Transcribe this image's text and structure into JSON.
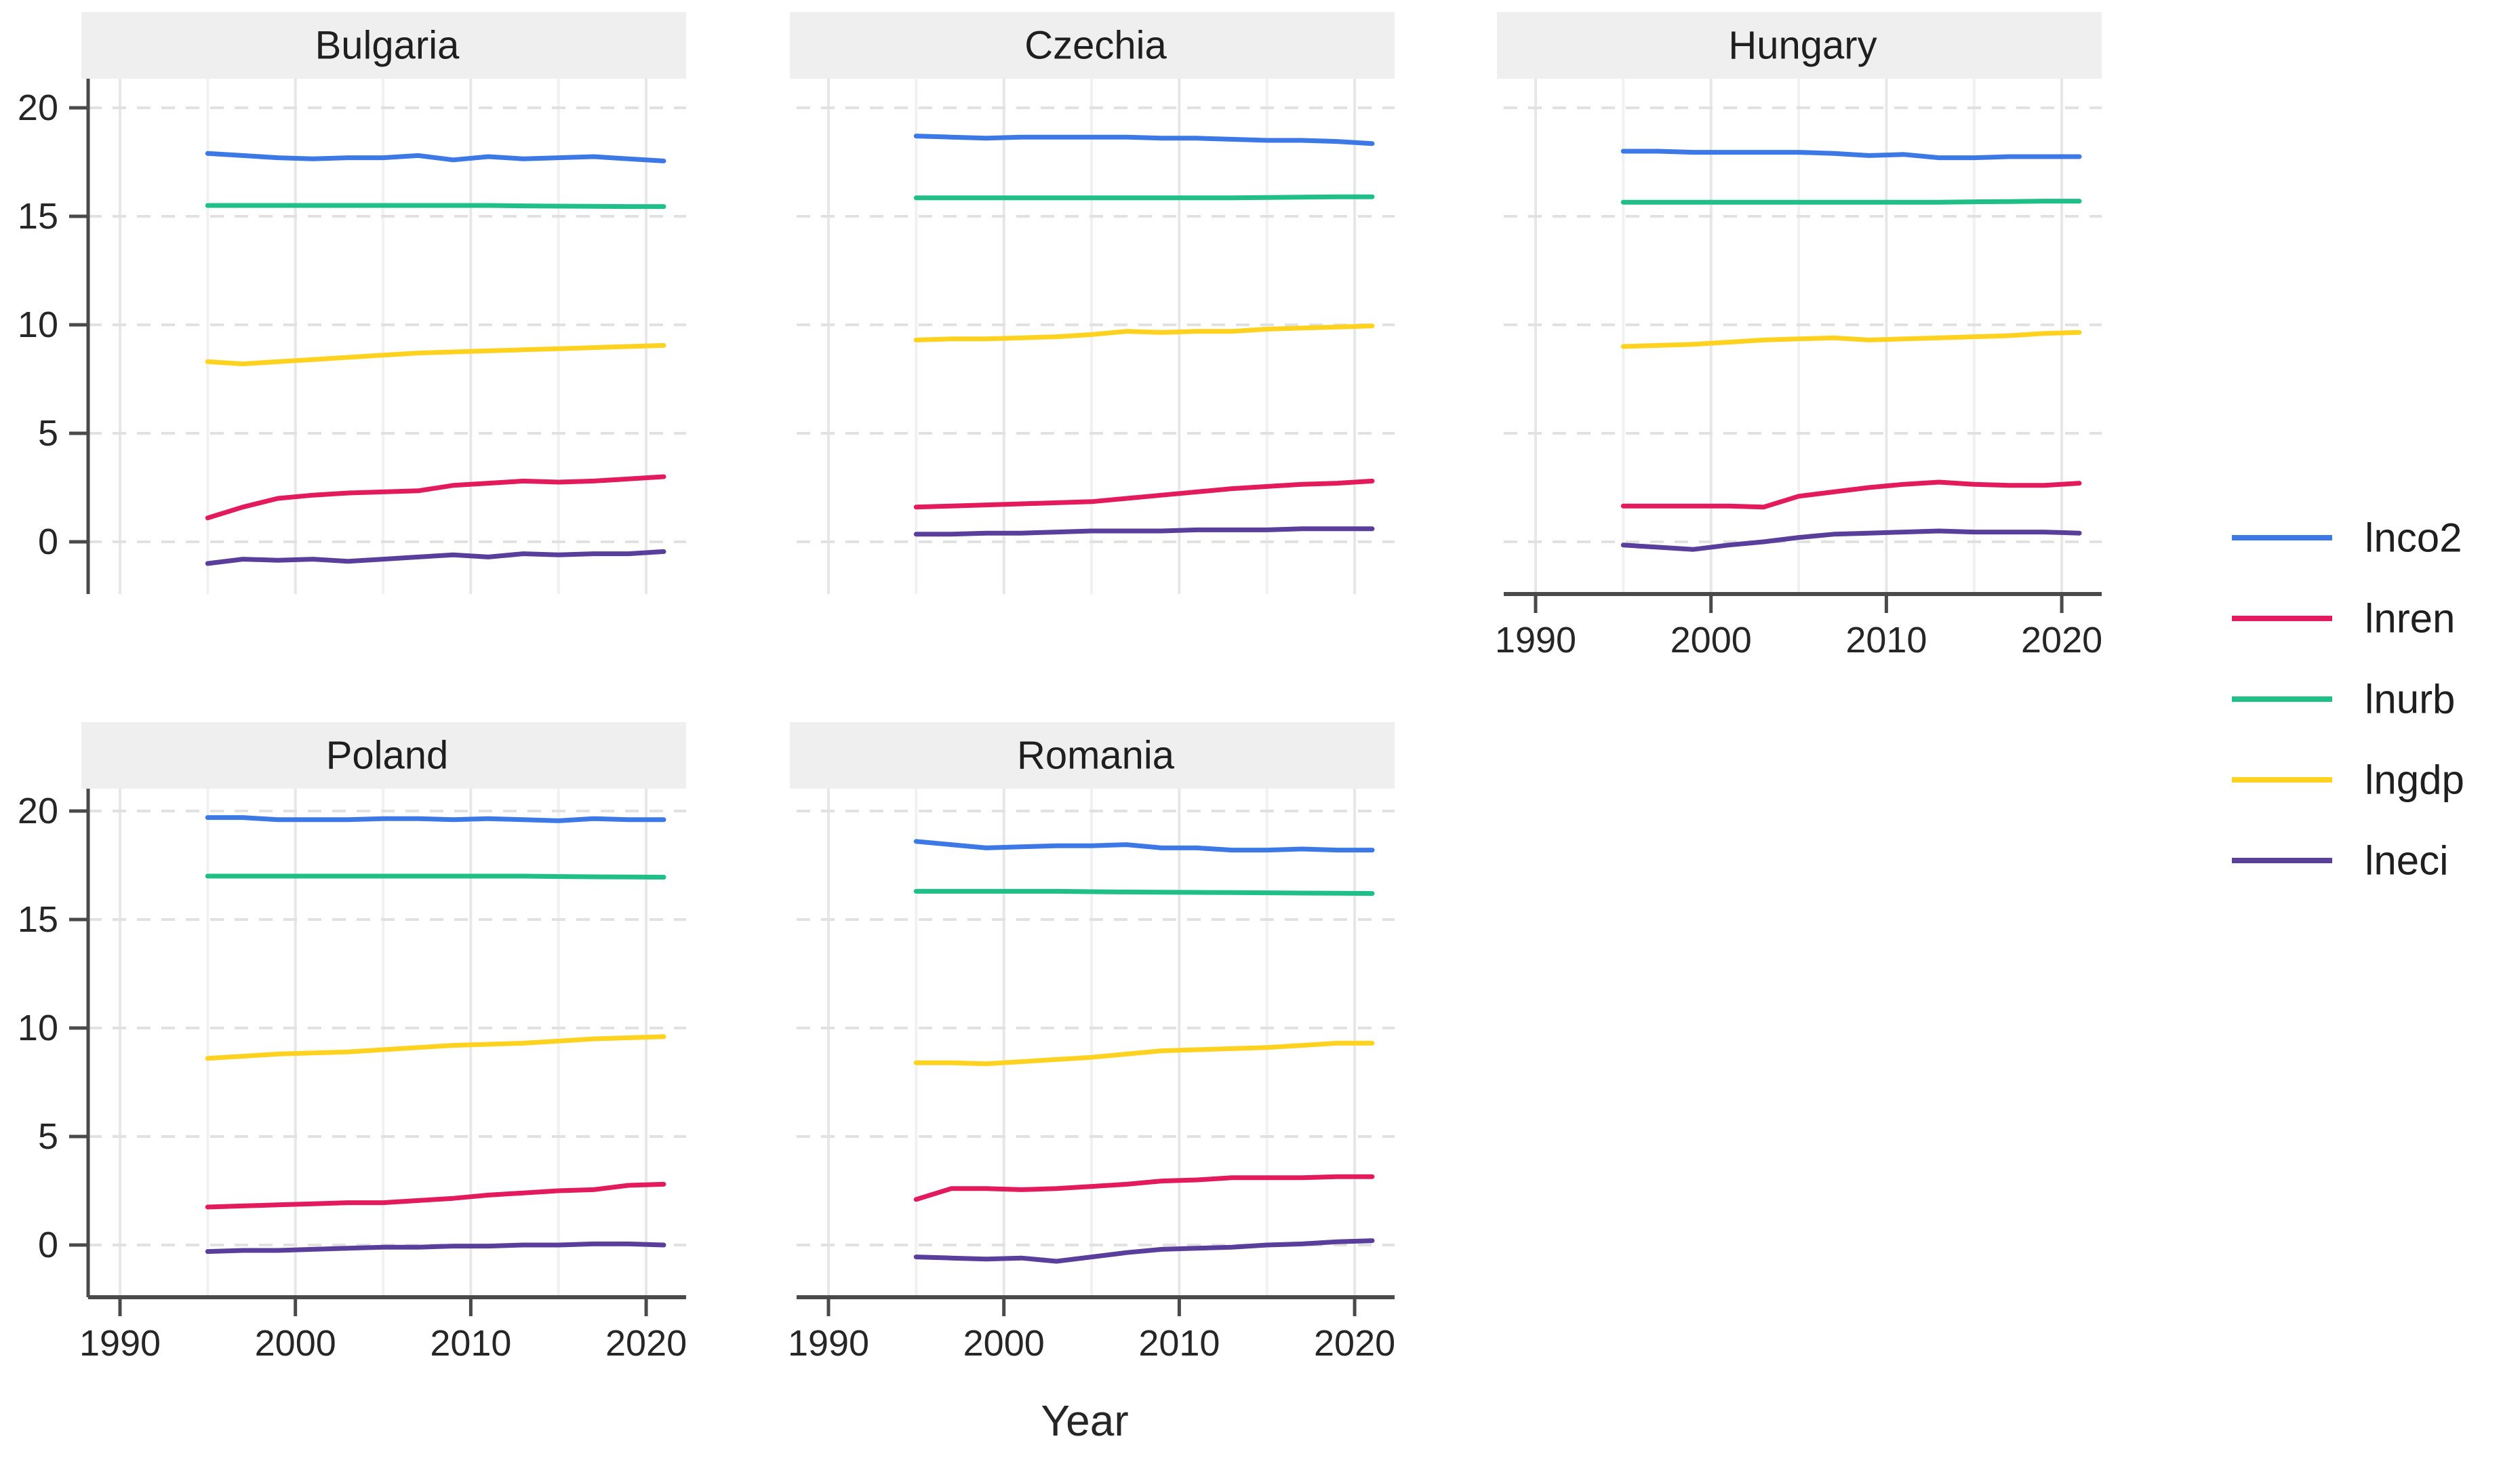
{
  "figure": {
    "x_axis_title": "Year"
  },
  "chart_data": {
    "type": "line",
    "title": "",
    "xlabel": "Year",
    "ylabel": "",
    "legend_position": "right",
    "grid": "horizontal-major-dashed, vertical-major-and-minor-solid-light",
    "x_ticks": [
      1990,
      2000,
      2010,
      2020
    ],
    "y_ticks": [
      0,
      5,
      10,
      15,
      20
    ],
    "xlim": [
      1988.2,
      2022.3
    ],
    "ylim": [
      -2.4,
      21.4
    ],
    "x": [
      1995,
      1997,
      1999,
      2001,
      2003,
      2005,
      2007,
      2009,
      2011,
      2013,
      2015,
      2017,
      2019,
      2021
    ],
    "series_meta": [
      {
        "key": "lnco2",
        "label": "lnco2",
        "color": "#3C79E6"
      },
      {
        "key": "lnren",
        "label": "lnren",
        "color": "#E31A5C"
      },
      {
        "key": "lnurb",
        "label": "lnurb",
        "color": "#1FBF87"
      },
      {
        "key": "lngdp",
        "label": "lngdp",
        "color": "#FFD21F"
      },
      {
        "key": "lneci",
        "label": "lneci",
        "color": "#5A3E9B"
      }
    ],
    "style": {
      "strip_bg": "#EFEFEF",
      "strip_text": "#1f1f1f",
      "axis_line": "#4A4A4A",
      "tick_text": "#262626",
      "grid_major_v": "#E7E7E7",
      "grid_minor_v": "#F1F1F1",
      "grid_major_h_dashed": "#E1E1E1"
    },
    "facets": [
      {
        "title": "Bulgaria",
        "series": {
          "lnco2": [
            17.9,
            17.8,
            17.7,
            17.65,
            17.7,
            17.7,
            17.8,
            17.6,
            17.75,
            17.65,
            17.7,
            17.75,
            17.65,
            17.55
          ],
          "lnren": [
            1.1,
            1.6,
            2.0,
            2.15,
            2.25,
            2.3,
            2.35,
            2.6,
            2.7,
            2.8,
            2.75,
            2.8,
            2.9,
            3.0
          ],
          "lnurb": [
            15.5,
            15.5,
            15.5,
            15.5,
            15.5,
            15.5,
            15.5,
            15.5,
            15.5,
            15.48,
            15.47,
            15.46,
            15.45,
            15.45
          ],
          "lngdp": [
            8.3,
            8.2,
            8.3,
            8.4,
            8.5,
            8.6,
            8.7,
            8.75,
            8.8,
            8.85,
            8.9,
            8.95,
            9.0,
            9.05
          ],
          "lneci": [
            -1.0,
            -0.8,
            -0.85,
            -0.8,
            -0.9,
            -0.8,
            -0.7,
            -0.6,
            -0.7,
            -0.55,
            -0.6,
            -0.55,
            -0.55,
            -0.45
          ]
        }
      },
      {
        "title": "Czechia",
        "series": {
          "lnco2": [
            18.7,
            18.65,
            18.6,
            18.65,
            18.65,
            18.65,
            18.65,
            18.6,
            18.6,
            18.55,
            18.5,
            18.5,
            18.45,
            18.35
          ],
          "lnren": [
            1.6,
            1.65,
            1.7,
            1.75,
            1.8,
            1.85,
            2.0,
            2.15,
            2.3,
            2.45,
            2.55,
            2.65,
            2.7,
            2.8
          ],
          "lnurb": [
            15.85,
            15.85,
            15.85,
            15.85,
            15.85,
            15.85,
            15.85,
            15.85,
            15.85,
            15.85,
            15.87,
            15.88,
            15.9,
            15.9
          ],
          "lngdp": [
            9.3,
            9.35,
            9.35,
            9.4,
            9.45,
            9.55,
            9.7,
            9.65,
            9.7,
            9.7,
            9.8,
            9.85,
            9.9,
            9.95
          ],
          "lneci": [
            0.35,
            0.35,
            0.4,
            0.4,
            0.45,
            0.5,
            0.5,
            0.5,
            0.55,
            0.55,
            0.55,
            0.6,
            0.6,
            0.6
          ]
        }
      },
      {
        "title": "Hungary",
        "series": {
          "lnco2": [
            18.0,
            18.0,
            17.95,
            17.95,
            17.95,
            17.95,
            17.9,
            17.8,
            17.85,
            17.7,
            17.7,
            17.75,
            17.75,
            17.75
          ],
          "lnren": [
            1.65,
            1.65,
            1.65,
            1.65,
            1.6,
            2.1,
            2.3,
            2.5,
            2.65,
            2.75,
            2.65,
            2.6,
            2.6,
            2.7
          ],
          "lnurb": [
            15.65,
            15.65,
            15.65,
            15.65,
            15.65,
            15.65,
            15.65,
            15.65,
            15.65,
            15.65,
            15.67,
            15.68,
            15.7,
            15.7
          ],
          "lngdp": [
            9.0,
            9.05,
            9.1,
            9.2,
            9.3,
            9.35,
            9.4,
            9.3,
            9.35,
            9.4,
            9.45,
            9.5,
            9.6,
            9.65
          ],
          "lneci": [
            -0.15,
            -0.25,
            -0.35,
            -0.15,
            0.0,
            0.2,
            0.35,
            0.4,
            0.45,
            0.5,
            0.45,
            0.45,
            0.45,
            0.4
          ]
        }
      },
      {
        "title": "Poland",
        "series": {
          "lnco2": [
            19.7,
            19.7,
            19.6,
            19.6,
            19.6,
            19.65,
            19.65,
            19.6,
            19.65,
            19.6,
            19.55,
            19.65,
            19.6,
            19.6
          ],
          "lnren": [
            1.75,
            1.8,
            1.85,
            1.9,
            1.95,
            1.95,
            2.05,
            2.15,
            2.3,
            2.4,
            2.5,
            2.55,
            2.75,
            2.8
          ],
          "lnurb": [
            17.0,
            17.0,
            17.0,
            17.0,
            17.0,
            17.0,
            17.0,
            17.0,
            17.0,
            17.0,
            16.98,
            16.97,
            16.96,
            16.95
          ],
          "lngdp": [
            8.6,
            8.7,
            8.8,
            8.85,
            8.9,
            9.0,
            9.1,
            9.2,
            9.25,
            9.3,
            9.4,
            9.5,
            9.55,
            9.6
          ],
          "lneci": [
            -0.3,
            -0.25,
            -0.25,
            -0.2,
            -0.15,
            -0.1,
            -0.1,
            -0.05,
            -0.05,
            0.0,
            0.0,
            0.05,
            0.05,
            0.0
          ]
        }
      },
      {
        "title": "Romania",
        "series": {
          "lnco2": [
            18.6,
            18.45,
            18.3,
            18.35,
            18.4,
            18.4,
            18.45,
            18.3,
            18.3,
            18.2,
            18.2,
            18.25,
            18.2,
            18.2
          ],
          "lnren": [
            2.1,
            2.6,
            2.6,
            2.55,
            2.6,
            2.7,
            2.8,
            2.95,
            3.0,
            3.1,
            3.1,
            3.1,
            3.15,
            3.15
          ],
          "lnurb": [
            16.3,
            16.3,
            16.3,
            16.3,
            16.3,
            16.28,
            16.27,
            16.26,
            16.25,
            16.24,
            16.23,
            16.22,
            16.21,
            16.2
          ],
          "lngdp": [
            8.4,
            8.4,
            8.35,
            8.45,
            8.55,
            8.65,
            8.8,
            8.95,
            9.0,
            9.05,
            9.1,
            9.2,
            9.3,
            9.3
          ],
          "lneci": [
            -0.55,
            -0.6,
            -0.65,
            -0.6,
            -0.75,
            -0.55,
            -0.35,
            -0.2,
            -0.15,
            -0.1,
            0.0,
            0.05,
            0.15,
            0.2
          ]
        }
      }
    ]
  }
}
